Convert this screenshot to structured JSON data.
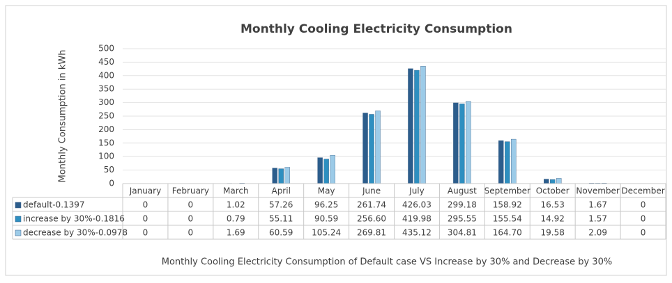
{
  "chart_data": {
    "type": "bar",
    "title": "Monthly Cooling Electricity Consumption",
    "y_label": "Monthly Consumption in kWh",
    "x_label": "Monthly Cooling Electricity Consumption of Default case VS Increase by 30% and Decrease by 30%",
    "categories": [
      "January",
      "February",
      "March",
      "April",
      "May",
      "June",
      "July",
      "August",
      "September",
      "October",
      "November",
      "December"
    ],
    "series": [
      {
        "name": "default-0.1397",
        "color": "#2c5d8c",
        "values": [
          0,
          0,
          1.02,
          57.26,
          96.25,
          261.74,
          426.03,
          299.18,
          158.92,
          16.53,
          1.67,
          0
        ],
        "value_labels": [
          "0",
          "0",
          "1.02",
          "57.26",
          "96.25",
          "261.74",
          "426.03",
          "299.18",
          "158.92",
          "16.53",
          "1.67",
          "0"
        ]
      },
      {
        "name": "increase by 30%-0.1816",
        "color": "#2e8fc0",
        "values": [
          0,
          0,
          0.79,
          55.11,
          90.59,
          256.6,
          419.98,
          295.55,
          155.54,
          14.92,
          1.57,
          0
        ],
        "value_labels": [
          "0",
          "0",
          "0.79",
          "55.11",
          "90.59",
          "256.60",
          "419.98",
          "295.55",
          "155.54",
          "14.92",
          "1.57",
          "0"
        ]
      },
      {
        "name": "decrease by 30%-0.0978",
        "color": "#9ccbe8",
        "values": [
          0,
          0,
          1.69,
          60.59,
          105.24,
          269.81,
          435.12,
          304.81,
          164.7,
          19.58,
          2.09,
          0
        ],
        "value_labels": [
          "0",
          "0",
          "1.69",
          "60.59",
          "105.24",
          "269.81",
          "435.12",
          "304.81",
          "164.70",
          "19.58",
          "2.09",
          "0"
        ]
      }
    ],
    "ylim": [
      0,
      500
    ],
    "yticks": [
      0,
      50,
      100,
      150,
      200,
      250,
      300,
      350,
      400,
      450,
      500
    ],
    "grid": true
  }
}
